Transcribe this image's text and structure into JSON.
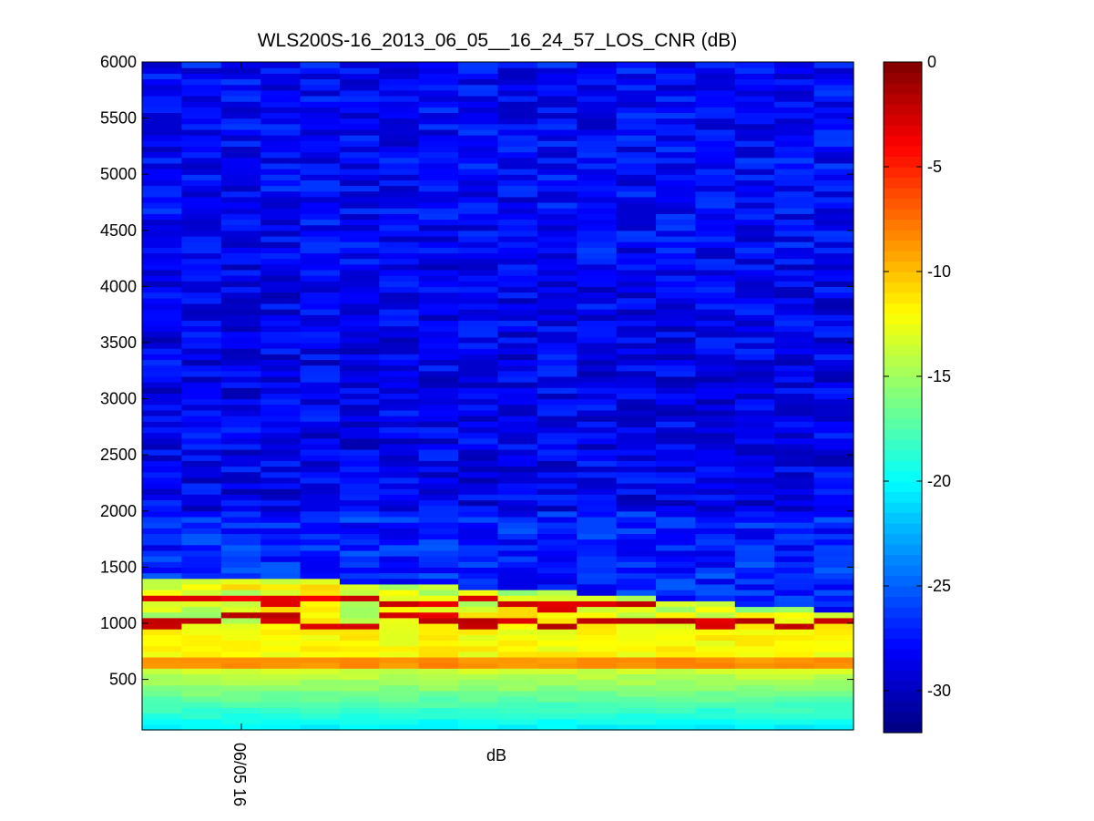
{
  "chart_data": {
    "type": "heatmap",
    "title": "WLS200S-16_2013_06_05__16_24_57_LOS_CNR (dB)",
    "xlabel": "dB",
    "ylabel": "",
    "x_tick_labels": [
      "06/05 16"
    ],
    "y_ticks": [
      500,
      1000,
      1500,
      2000,
      2500,
      3000,
      3500,
      4000,
      4500,
      5000,
      5500,
      6000
    ],
    "ylim": [
      50,
      6000
    ],
    "colorbar": {
      "label": "",
      "ticks": [
        0,
        -5,
        -10,
        -15,
        -20,
        -25,
        -30
      ],
      "range": [
        -32,
        0
      ],
      "colormap": "jet"
    },
    "columns": 18,
    "row_spacing_m": 50,
    "description_values_dB": {
      "upper_background_5000_to_2000m": -28.5,
      "near_surface_100m": -20,
      "band_at_650_to_700m": -8.5,
      "band_at_950m": -2,
      "aerosol_top_1350m": -14
    },
    "colors": {
      "frame": "#000000",
      "background": "#ffffff"
    }
  }
}
